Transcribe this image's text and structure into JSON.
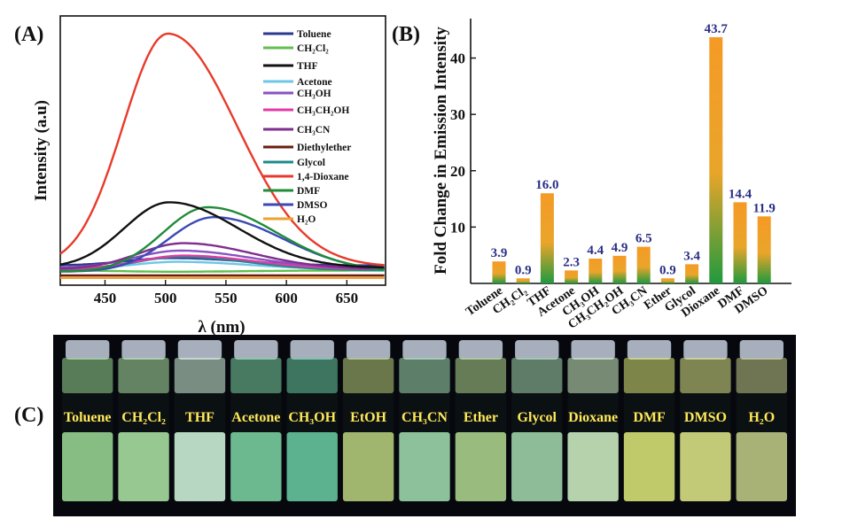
{
  "chart_data": [
    {
      "panel": "(A)",
      "type": "line",
      "xlabel": "λ (nm)",
      "ylabel": "Intensity (a.u)",
      "xlim": [
        413,
        682
      ],
      "xticks": [
        450,
        500,
        550,
        600,
        650
      ],
      "ylim": [
        0,
        100
      ],
      "grid": false,
      "legend_position": "top-right",
      "series": [
        {
          "name": "Toluene",
          "color": "#2b3a8f",
          "peak_nm": 505,
          "peak": 9.5,
          "base": 6.5
        },
        {
          "name": "CH₂Cl₂",
          "color": "#5fbf4f",
          "peak_nm": 505,
          "peak": 4.0,
          "base": 4.5
        },
        {
          "name": "THF",
          "color": "#111111",
          "peak_nm": 503,
          "peak": 32.0,
          "base": 5.5
        },
        {
          "name": "Acetone",
          "color": "#6ec6e6",
          "peak_nm": 510,
          "peak": 8.0,
          "base": 5.0
        },
        {
          "name": "CH₃OH",
          "color": "#8a52c2",
          "peak_nm": 512,
          "peak": 12.5,
          "base": 5.5
        },
        {
          "name": "CH₃CH₂OH",
          "color": "#e23aa6",
          "peak_nm": 515,
          "peak": 10.5,
          "base": 5.0
        },
        {
          "name": "CH₃CN",
          "color": "#7e2e8e",
          "peak_nm": 515,
          "peak": 15.5,
          "base": 5.0
        },
        {
          "name": "Diethylether",
          "color": "#6b1e10",
          "peak_nm": 505,
          "peak": 2.5,
          "base": 2.5
        },
        {
          "name": "Glycol",
          "color": "#1d8a8a",
          "peak_nm": 512,
          "peak": 10.0,
          "base": 4.5
        },
        {
          "name": "1,4-Dioxane",
          "color": "#e83a2c",
          "peak_nm": 502,
          "peak": 100,
          "base": 6.0
        },
        {
          "name": "DMF",
          "color": "#1f8c3a",
          "peak_nm": 535,
          "peak": 30.0,
          "base": 4.0
        },
        {
          "name": "DMSO",
          "color": "#3a4ab5",
          "peak_nm": 540,
          "peak": 26.0,
          "base": 4.0
        },
        {
          "name": "H₂O",
          "color": "#f0a030",
          "peak_nm": 505,
          "peak": 1.5,
          "base": 1.5
        }
      ]
    },
    {
      "panel": "(B)",
      "type": "bar",
      "ylabel": "Fold Change in Emission Intensity",
      "ylim": [
        0,
        47
      ],
      "yticks": [
        10,
        20,
        30,
        40
      ],
      "grid": false,
      "categories": [
        "Toluene",
        "CH₂Cl₂",
        "THF",
        "Acetone",
        "CH₃OH",
        "CH₃CH₂OH",
        "CH₃CN",
        "Ether",
        "Glycol",
        "Dioxane",
        "DMF",
        "DMSO"
      ],
      "values": [
        3.9,
        0.9,
        16.0,
        2.3,
        4.4,
        4.9,
        6.5,
        0.9,
        3.4,
        43.7,
        14.4,
        11.9
      ],
      "value_labels": [
        "3.9",
        "0.9",
        "16.0",
        "2.3",
        "4.4",
        "4.9",
        "6.5",
        "0.9",
        "3.4",
        "43.7",
        "14.4",
        "11.9"
      ],
      "bar_gradient": [
        "#f59a26",
        "#1f9a3e"
      ]
    }
  ],
  "photo": {
    "panel": "(C)",
    "vials": [
      {
        "label": "Toluene",
        "glow": "#9fdc96"
      },
      {
        "label": "CH₂Cl₂",
        "glow": "#b2eaa8"
      },
      {
        "label": "THF",
        "glow": "#d8fbe2"
      },
      {
        "label": "Acetone",
        "glow": "#7fd7a6"
      },
      {
        "label": "CH₃OH",
        "glow": "#6cd0a4"
      },
      {
        "label": "EtOH",
        "glow": "#bcd47e"
      },
      {
        "label": "CH₃CN",
        "glow": "#a6e2b4"
      },
      {
        "label": "Ether",
        "glow": "#b4dc92"
      },
      {
        "label": "Glycol",
        "glow": "#a8dcb0"
      },
      {
        "label": "Dioxane",
        "glow": "#d6f6c8"
      },
      {
        "label": "DMF",
        "glow": "#e2ec7a"
      },
      {
        "label": "DMSO",
        "glow": "#e4ec8a"
      },
      {
        "label": "H₂O",
        "glow": "#c6d08a"
      }
    ]
  }
}
